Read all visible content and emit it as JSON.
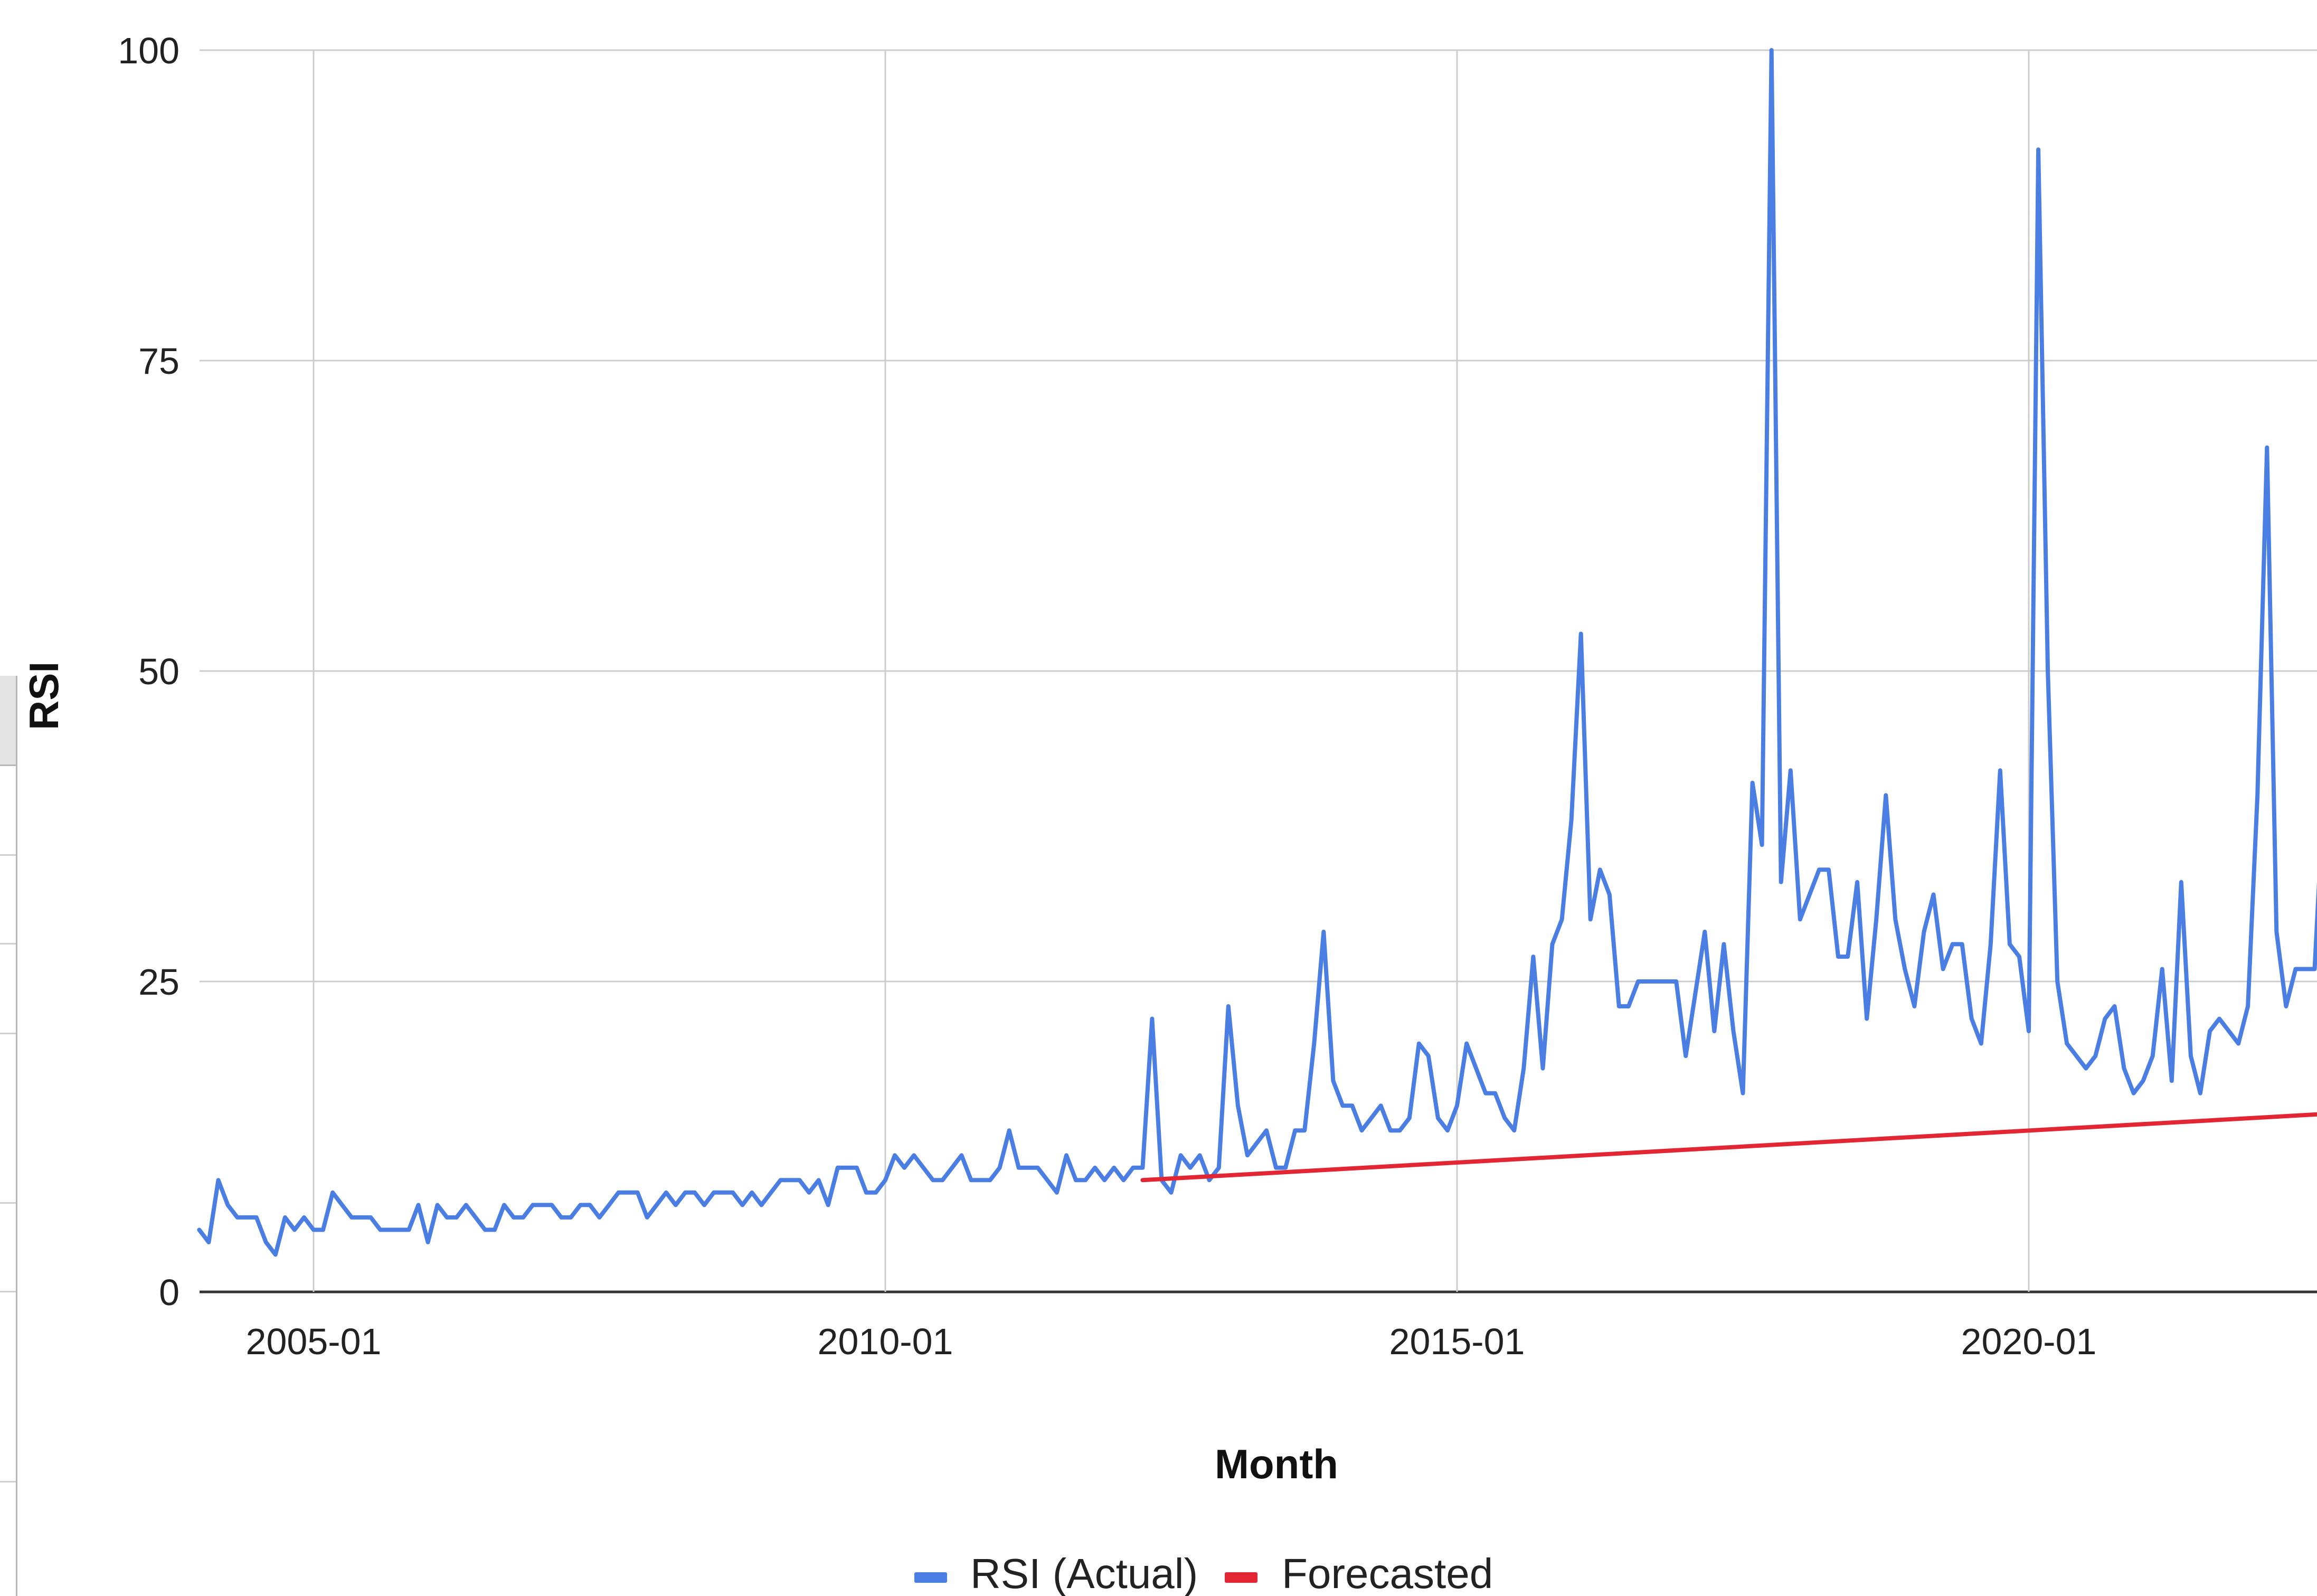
{
  "chart_data": {
    "type": "line",
    "title": "",
    "xlabel": "Month",
    "ylabel": "RSI",
    "x_axis": {
      "type": "date",
      "min": "2004-01",
      "max": "2022-12",
      "ticks": [
        "2005-01",
        "2010-01",
        "2015-01",
        "2020-01"
      ]
    },
    "ylim": [
      0,
      100
    ],
    "y_ticks": [
      0,
      25,
      50,
      75,
      100
    ],
    "grid": true,
    "legend_position": "bottom",
    "series": [
      {
        "name": "RSI (Actual)",
        "color": "#4a7ee3",
        "points": [
          [
            "2004-01",
            5
          ],
          [
            "2004-02",
            4
          ],
          [
            "2004-03",
            9
          ],
          [
            "2004-04",
            7
          ],
          [
            "2004-05",
            6
          ],
          [
            "2004-06",
            6
          ],
          [
            "2004-07",
            6
          ],
          [
            "2004-08",
            4
          ],
          [
            "2004-09",
            3
          ],
          [
            "2004-10",
            6
          ],
          [
            "2004-11",
            5
          ],
          [
            "2004-12",
            6
          ],
          [
            "2005-01",
            5
          ],
          [
            "2005-02",
            5
          ],
          [
            "2005-03",
            8
          ],
          [
            "2005-04",
            7
          ],
          [
            "2005-05",
            6
          ],
          [
            "2005-06",
            6
          ],
          [
            "2005-07",
            6
          ],
          [
            "2005-08",
            5
          ],
          [
            "2005-09",
            5
          ],
          [
            "2005-10",
            5
          ],
          [
            "2005-11",
            5
          ],
          [
            "2005-12",
            7
          ],
          [
            "2006-01",
            4
          ],
          [
            "2006-02",
            7
          ],
          [
            "2006-03",
            6
          ],
          [
            "2006-04",
            6
          ],
          [
            "2006-05",
            7
          ],
          [
            "2006-06",
            6
          ],
          [
            "2006-07",
            5
          ],
          [
            "2006-08",
            5
          ],
          [
            "2006-09",
            7
          ],
          [
            "2006-10",
            6
          ],
          [
            "2006-11",
            6
          ],
          [
            "2006-12",
            7
          ],
          [
            "2007-01",
            7
          ],
          [
            "2007-02",
            7
          ],
          [
            "2007-03",
            6
          ],
          [
            "2007-04",
            6
          ],
          [
            "2007-05",
            7
          ],
          [
            "2007-06",
            7
          ],
          [
            "2007-07",
            6
          ],
          [
            "2007-08",
            7
          ],
          [
            "2007-09",
            8
          ],
          [
            "2007-10",
            8
          ],
          [
            "2007-11",
            8
          ],
          [
            "2007-12",
            6
          ],
          [
            "2008-01",
            7
          ],
          [
            "2008-02",
            8
          ],
          [
            "2008-03",
            7
          ],
          [
            "2008-04",
            8
          ],
          [
            "2008-05",
            8
          ],
          [
            "2008-06",
            7
          ],
          [
            "2008-07",
            8
          ],
          [
            "2008-08",
            8
          ],
          [
            "2008-09",
            8
          ],
          [
            "2008-10",
            7
          ],
          [
            "2008-11",
            8
          ],
          [
            "2008-12",
            7
          ],
          [
            "2009-01",
            8
          ],
          [
            "2009-02",
            9
          ],
          [
            "2009-03",
            9
          ],
          [
            "2009-04",
            9
          ],
          [
            "2009-05",
            8
          ],
          [
            "2009-06",
            9
          ],
          [
            "2009-07",
            7
          ],
          [
            "2009-08",
            10
          ],
          [
            "2009-09",
            10
          ],
          [
            "2009-10",
            10
          ],
          [
            "2009-11",
            8
          ],
          [
            "2009-12",
            8
          ],
          [
            "2010-01",
            9
          ],
          [
            "2010-02",
            11
          ],
          [
            "2010-03",
            10
          ],
          [
            "2010-04",
            11
          ],
          [
            "2010-05",
            10
          ],
          [
            "2010-06",
            9
          ],
          [
            "2010-07",
            9
          ],
          [
            "2010-08",
            10
          ],
          [
            "2010-09",
            11
          ],
          [
            "2010-10",
            9
          ],
          [
            "2010-11",
            9
          ],
          [
            "2010-12",
            9
          ],
          [
            "2011-01",
            10
          ],
          [
            "2011-02",
            13
          ],
          [
            "2011-03",
            10
          ],
          [
            "2011-04",
            10
          ],
          [
            "2011-05",
            10
          ],
          [
            "2011-06",
            9
          ],
          [
            "2011-07",
            8
          ],
          [
            "2011-08",
            11
          ],
          [
            "2011-09",
            9
          ],
          [
            "2011-10",
            9
          ],
          [
            "2011-11",
            10
          ],
          [
            "2011-12",
            9
          ],
          [
            "2012-01",
            10
          ],
          [
            "2012-02",
            9
          ],
          [
            "2012-03",
            10
          ],
          [
            "2012-04",
            10
          ],
          [
            "2012-05",
            22
          ],
          [
            "2012-06",
            9
          ],
          [
            "2012-07",
            8
          ],
          [
            "2012-08",
            11
          ],
          [
            "2012-09",
            10
          ],
          [
            "2012-10",
            11
          ],
          [
            "2012-11",
            9
          ],
          [
            "2012-12",
            10
          ],
          [
            "2013-01",
            23
          ],
          [
            "2013-02",
            15
          ],
          [
            "2013-03",
            11
          ],
          [
            "2013-04",
            12
          ],
          [
            "2013-05",
            13
          ],
          [
            "2013-06",
            10
          ],
          [
            "2013-07",
            10
          ],
          [
            "2013-08",
            13
          ],
          [
            "2013-09",
            13
          ],
          [
            "2013-10",
            20
          ],
          [
            "2013-11",
            29
          ],
          [
            "2013-12",
            17
          ],
          [
            "2014-01",
            15
          ],
          [
            "2014-02",
            15
          ],
          [
            "2014-03",
            13
          ],
          [
            "2014-04",
            14
          ],
          [
            "2014-05",
            15
          ],
          [
            "2014-06",
            13
          ],
          [
            "2014-07",
            13
          ],
          [
            "2014-08",
            14
          ],
          [
            "2014-09",
            20
          ],
          [
            "2014-10",
            19
          ],
          [
            "2014-11",
            14
          ],
          [
            "2014-12",
            13
          ],
          [
            "2015-01",
            15
          ],
          [
            "2015-02",
            20
          ],
          [
            "2015-03",
            18
          ],
          [
            "2015-04",
            16
          ],
          [
            "2015-05",
            16
          ],
          [
            "2015-06",
            14
          ],
          [
            "2015-07",
            13
          ],
          [
            "2015-08",
            18
          ],
          [
            "2015-09",
            27
          ],
          [
            "2015-10",
            18
          ],
          [
            "2015-11",
            28
          ],
          [
            "2015-12",
            30
          ],
          [
            "2016-01",
            38
          ],
          [
            "2016-02",
            53
          ],
          [
            "2016-03",
            30
          ],
          [
            "2016-04",
            34
          ],
          [
            "2016-05",
            32
          ],
          [
            "2016-06",
            23
          ],
          [
            "2016-07",
            23
          ],
          [
            "2016-08",
            25
          ],
          [
            "2016-09",
            25
          ],
          [
            "2016-10",
            25
          ],
          [
            "2016-11",
            25
          ],
          [
            "2016-12",
            25
          ],
          [
            "2017-01",
            19
          ],
          [
            "2017-02",
            24
          ],
          [
            "2017-03",
            29
          ],
          [
            "2017-04",
            21
          ],
          [
            "2017-05",
            28
          ],
          [
            "2017-06",
            21
          ],
          [
            "2017-07",
            16
          ],
          [
            "2017-08",
            41
          ],
          [
            "2017-09",
            36
          ],
          [
            "2017-10",
            100
          ],
          [
            "2017-11",
            33
          ],
          [
            "2017-12",
            42
          ],
          [
            "2018-01",
            30
          ],
          [
            "2018-02",
            32
          ],
          [
            "2018-03",
            34
          ],
          [
            "2018-04",
            34
          ],
          [
            "2018-05",
            27
          ],
          [
            "2018-06",
            27
          ],
          [
            "2018-07",
            33
          ],
          [
            "2018-08",
            22
          ],
          [
            "2018-09",
            30
          ],
          [
            "2018-10",
            40
          ],
          [
            "2018-11",
            30
          ],
          [
            "2018-12",
            26
          ],
          [
            "2019-01",
            23
          ],
          [
            "2019-02",
            29
          ],
          [
            "2019-03",
            32
          ],
          [
            "2019-04",
            26
          ],
          [
            "2019-05",
            28
          ],
          [
            "2019-06",
            28
          ],
          [
            "2019-07",
            22
          ],
          [
            "2019-08",
            20
          ],
          [
            "2019-09",
            28
          ],
          [
            "2019-10",
            42
          ],
          [
            "2019-11",
            28
          ],
          [
            "2019-12",
            27
          ],
          [
            "2020-01",
            21
          ],
          [
            "2020-02",
            92
          ],
          [
            "2020-03",
            50
          ],
          [
            "2020-04",
            25
          ],
          [
            "2020-05",
            20
          ],
          [
            "2020-06",
            19
          ],
          [
            "2020-07",
            18
          ],
          [
            "2020-08",
            19
          ],
          [
            "2020-09",
            22
          ],
          [
            "2020-10",
            23
          ],
          [
            "2020-11",
            18
          ],
          [
            "2020-12",
            16
          ],
          [
            "2021-01",
            17
          ],
          [
            "2021-02",
            19
          ],
          [
            "2021-03",
            26
          ],
          [
            "2021-04",
            17
          ],
          [
            "2021-05",
            33
          ],
          [
            "2021-06",
            19
          ],
          [
            "2021-07",
            16
          ],
          [
            "2021-08",
            21
          ],
          [
            "2021-09",
            22
          ],
          [
            "2021-10",
            21
          ],
          [
            "2021-11",
            20
          ],
          [
            "2021-12",
            23
          ],
          [
            "2022-01",
            40
          ],
          [
            "2022-02",
            68
          ],
          [
            "2022-03",
            29
          ],
          [
            "2022-04",
            23
          ],
          [
            "2022-05",
            26
          ],
          [
            "2022-06",
            26
          ],
          [
            "2022-07",
            26
          ],
          [
            "2022-08",
            41
          ]
        ]
      },
      {
        "name": "Forecasted",
        "color": "#e32633",
        "points": [
          [
            "2012-04",
            9
          ],
          [
            "2022-12",
            14.5
          ]
        ]
      }
    ]
  }
}
